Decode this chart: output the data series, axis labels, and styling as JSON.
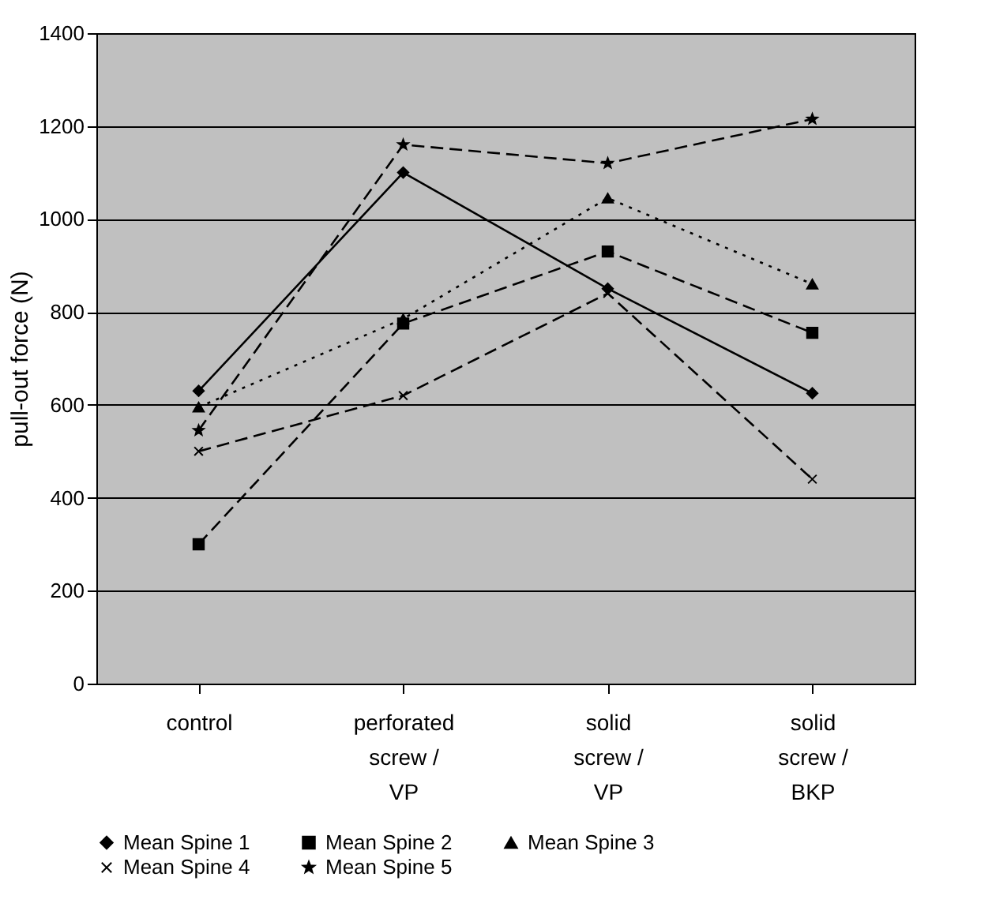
{
  "chart_data": {
    "type": "line",
    "ylabel": "pull-out force (N)",
    "categories": [
      "control",
      "perforated screw / VP",
      "solid screw / VP",
      "solid screw / BKP"
    ],
    "series": [
      {
        "name": "Mean Spine 1",
        "color": "#000000",
        "marker": "diamond",
        "line_style": "solid",
        "values": [
          630,
          1100,
          850,
          625
        ]
      },
      {
        "name": "Mean Spine 2",
        "color": "#000000",
        "marker": "square",
        "line_style": "dashed",
        "values": [
          300,
          775,
          930,
          755
        ]
      },
      {
        "name": "Mean Spine 3",
        "color": "#000000",
        "marker": "triangle",
        "line_style": "dotted",
        "values": [
          595,
          785,
          1045,
          860
        ]
      },
      {
        "name": "Mean Spine 4",
        "color": "#000000",
        "marker": "cross",
        "line_style": "dashed",
        "values": [
          500,
          620,
          840,
          440
        ]
      },
      {
        "name": "Mean Spine 5",
        "color": "#000000",
        "marker": "star",
        "line_style": "dashed",
        "values": [
          545,
          1160,
          1120,
          1215
        ]
      }
    ],
    "ylim": [
      0,
      1400
    ],
    "yticks": [
      0,
      200,
      400,
      600,
      800,
      1000,
      1200,
      1400
    ],
    "grid": "y",
    "legend": "bottom"
  }
}
